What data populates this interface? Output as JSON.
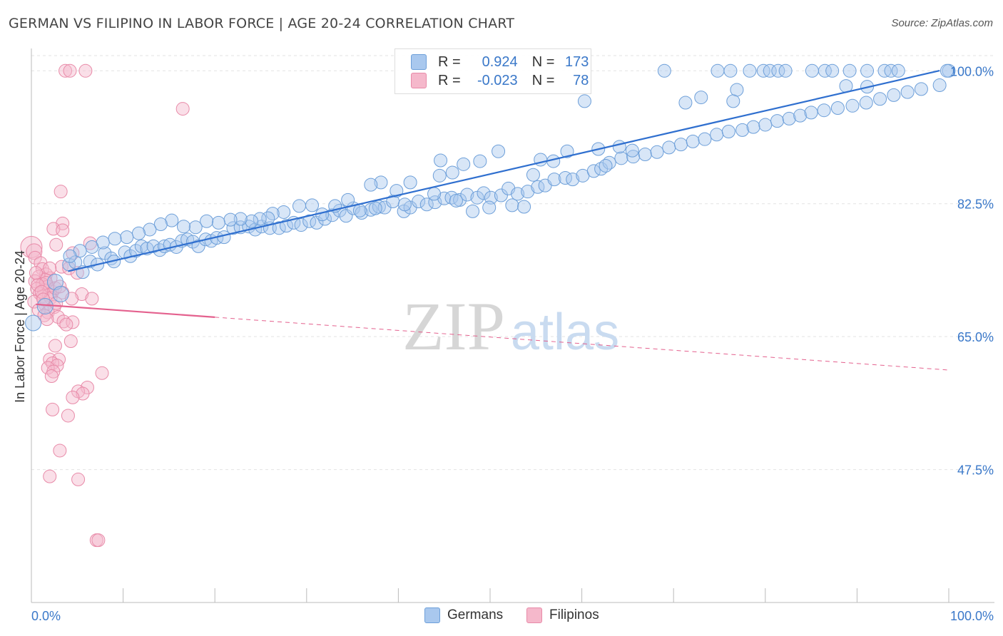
{
  "header": {
    "title": "GERMAN VS FILIPINO IN LABOR FORCE | AGE 20-24 CORRELATION CHART",
    "source": "Source: ZipAtlas.com"
  },
  "watermark": {
    "zip": "ZIP",
    "atlas": "atlas"
  },
  "stats_legend": {
    "rows": [
      {
        "r_label": "R =",
        "r_value": "0.924",
        "n_label": "N =",
        "n_value": "173",
        "color": "#a9c8ee"
      },
      {
        "r_label": "R =",
        "r_value": "-0.023",
        "n_label": "N =",
        "n_value": "78",
        "color": "#f5b8cb"
      }
    ]
  },
  "colors": {
    "german_fill": "#a9c8ee",
    "german_stroke": "#6d9fd9",
    "german_line": "#2f6fcf",
    "filipino_fill": "#f5b8cb",
    "filipino_stroke": "#e88aa8",
    "filipino_line": "#e4618e",
    "axis_text": "#3a78c9",
    "grid": "#e3e3e3"
  },
  "chart_data": {
    "type": "scatter",
    "title": "GERMAN VS FILIPINO IN LABOR FORCE | AGE 20-24 CORRELATION CHART",
    "xlabel": "",
    "ylabel": "In Labor Force | Age 20-24",
    "xlim": [
      0,
      100
    ],
    "ylim": [
      30,
      102
    ],
    "x_tick_labels": [
      "0.0%",
      "100.0%"
    ],
    "y_ticks": [
      47.5,
      65.0,
      82.5,
      100.0
    ],
    "y_tick_labels": [
      "47.5%",
      "65.0%",
      "82.5%",
      "100.0%"
    ],
    "grid": "horizontal dashed",
    "legend": "bottom-center",
    "series": [
      {
        "name": "Germans",
        "r": 0.924,
        "n": 173,
        "trend": {
          "x": [
            0,
            100
          ],
          "y": [
            72.5,
            100.3
          ],
          "style": "solid"
        },
        "points": [
          [
            0.2,
            66.8
          ],
          [
            1.5,
            69
          ],
          [
            2.6,
            72.2
          ],
          [
            3.2,
            70.6
          ],
          [
            4.1,
            74.5
          ],
          [
            4.8,
            74.8
          ],
          [
            5.6,
            73.5
          ],
          [
            6.4,
            74.9
          ],
          [
            7.2,
            74.5
          ],
          [
            8.0,
            76.0
          ],
          [
            8.7,
            75.3
          ],
          [
            9.0,
            74.9
          ],
          [
            10.2,
            76.1
          ],
          [
            10.8,
            75.6
          ],
          [
            11.4,
            76.3
          ],
          [
            12.0,
            76.9
          ],
          [
            12.6,
            76.6
          ],
          [
            13.3,
            76.9
          ],
          [
            14.0,
            76.4
          ],
          [
            14.5,
            76.9
          ],
          [
            15.1,
            77.1
          ],
          [
            15.8,
            76.8
          ],
          [
            16.4,
            77.6
          ],
          [
            17.0,
            77.8
          ],
          [
            17.6,
            77.5
          ],
          [
            18.2,
            76.9
          ],
          [
            19.0,
            77.8
          ],
          [
            19.6,
            77.6
          ],
          [
            20.2,
            78.0
          ],
          [
            21.0,
            78.1
          ],
          [
            22.0,
            79.3
          ],
          [
            22.8,
            79.4
          ],
          [
            23.7,
            79.5
          ],
          [
            24.4,
            79.1
          ],
          [
            25.1,
            79.5
          ],
          [
            26.0,
            79.3
          ],
          [
            27.0,
            79.3
          ],
          [
            27.8,
            79.6
          ],
          [
            28.6,
            80.0
          ],
          [
            29.4,
            79.7
          ],
          [
            30.3,
            80.2
          ],
          [
            31.1,
            80.0
          ],
          [
            32.0,
            80.5
          ],
          [
            32.8,
            81.0
          ],
          [
            33.6,
            81.6
          ],
          [
            34.3,
            80.9
          ],
          [
            35.1,
            81.9
          ],
          [
            36.0,
            81.3
          ],
          [
            37.0,
            81.7
          ],
          [
            37.9,
            82.1
          ],
          [
            38.5,
            82.0
          ],
          [
            39.4,
            82.8
          ],
          [
            40.6,
            81.5
          ],
          [
            41.3,
            82.0
          ],
          [
            42.2,
            82.8
          ],
          [
            43.1,
            82.4
          ],
          [
            44.0,
            82.7
          ],
          [
            45.0,
            83.2
          ],
          [
            45.8,
            83.3
          ],
          [
            46.7,
            83.0
          ],
          [
            47.5,
            83.7
          ],
          [
            48.6,
            83.3
          ],
          [
            49.3,
            83.9
          ],
          [
            50.1,
            83.3
          ],
          [
            51.2,
            83.6
          ],
          [
            52.0,
            84.5
          ],
          [
            53.0,
            83.8
          ],
          [
            54.1,
            84.1
          ],
          [
            55.2,
            84.7
          ],
          [
            56.0,
            84.9
          ],
          [
            57.0,
            85.7
          ],
          [
            58.2,
            85.9
          ],
          [
            59.0,
            85.7
          ],
          [
            60.1,
            86.2
          ],
          [
            61.3,
            86.8
          ],
          [
            62.1,
            87.1
          ],
          [
            63.0,
            87.9
          ],
          [
            64.3,
            88.5
          ],
          [
            65.6,
            88.7
          ],
          [
            66.9,
            89.0
          ],
          [
            68.2,
            89.3
          ],
          [
            69.5,
            89.9
          ],
          [
            70.8,
            90.3
          ],
          [
            72.1,
            90.7
          ],
          [
            73.4,
            91.0
          ],
          [
            74.7,
            91.6
          ],
          [
            76.0,
            92.0
          ],
          [
            77.5,
            92.2
          ],
          [
            78.7,
            92.6
          ],
          [
            80.0,
            92.9
          ],
          [
            81.3,
            93.4
          ],
          [
            82.6,
            93.7
          ],
          [
            83.8,
            94.1
          ],
          [
            85.0,
            94.5
          ],
          [
            86.4,
            94.8
          ],
          [
            87.9,
            95.1
          ],
          [
            89.5,
            95.4
          ],
          [
            91.0,
            95.8
          ],
          [
            92.5,
            96.3
          ],
          [
            94.0,
            96.8
          ],
          [
            95.5,
            97.2
          ],
          [
            97.0,
            97.6
          ],
          [
            99.0,
            98.1
          ],
          [
            100,
            100
          ],
          [
            69.0,
            100
          ],
          [
            74.8,
            100
          ],
          [
            76.2,
            100
          ],
          [
            78.3,
            100
          ],
          [
            79.8,
            100
          ],
          [
            80.5,
            100
          ],
          [
            81.4,
            100
          ],
          [
            82.2,
            100
          ],
          [
            85.1,
            100
          ],
          [
            86.5,
            100
          ],
          [
            87.3,
            100
          ],
          [
            89.2,
            100
          ],
          [
            91.1,
            100
          ],
          [
            93.0,
            100
          ],
          [
            93.7,
            100
          ],
          [
            94.5,
            100
          ],
          [
            99.8,
            100
          ],
          [
            88.8,
            98.0
          ],
          [
            91.1,
            97.9
          ],
          [
            76.9,
            97.5
          ],
          [
            73.0,
            96.5
          ],
          [
            71.3,
            95.8
          ],
          [
            76.5,
            96.0
          ],
          [
            60.3,
            96.0
          ],
          [
            58.4,
            89.4
          ],
          [
            64.1,
            90.0
          ],
          [
            65.5,
            89.5
          ],
          [
            61.8,
            89.7
          ],
          [
            62.6,
            87.5
          ],
          [
            56.9,
            88.1
          ],
          [
            55.5,
            88.3
          ],
          [
            54.7,
            86.3
          ],
          [
            50.9,
            89.4
          ],
          [
            48.9,
            88.1
          ],
          [
            47.1,
            87.7
          ],
          [
            45.9,
            86.6
          ],
          [
            44.6,
            88.2
          ],
          [
            44.5,
            86.2
          ],
          [
            46.3,
            82.9
          ],
          [
            41.3,
            85.3
          ],
          [
            38.1,
            85.3
          ],
          [
            37.0,
            85.0
          ],
          [
            48.1,
            81.5
          ],
          [
            49.9,
            82.0
          ],
          [
            52.4,
            82.3
          ],
          [
            53.7,
            82.1
          ],
          [
            43.9,
            83.8
          ],
          [
            40.7,
            82.4
          ],
          [
            39.8,
            84.2
          ],
          [
            37.5,
            81.9
          ],
          [
            35.8,
            81.6
          ],
          [
            34.5,
            83.0
          ],
          [
            33.1,
            82.2
          ],
          [
            31.7,
            81.1
          ],
          [
            30.6,
            82.3
          ],
          [
            29.2,
            82.2
          ],
          [
            27.5,
            81.4
          ],
          [
            26.3,
            81.2
          ],
          [
            25.8,
            80.6
          ],
          [
            24.9,
            80.5
          ],
          [
            24.0,
            80.2
          ],
          [
            22.8,
            80.5
          ],
          [
            21.7,
            80.4
          ],
          [
            20.4,
            80.0
          ],
          [
            19.1,
            80.2
          ],
          [
            17.9,
            79.4
          ],
          [
            16.6,
            79.5
          ],
          [
            15.3,
            80.3
          ],
          [
            14.1,
            79.8
          ],
          [
            12.9,
            79.1
          ],
          [
            11.7,
            78.6
          ],
          [
            10.4,
            78.1
          ],
          [
            9.1,
            77.9
          ],
          [
            7.8,
            77.4
          ],
          [
            6.6,
            76.8
          ],
          [
            5.3,
            76.3
          ],
          [
            4.2,
            75.6
          ]
        ]
      },
      {
        "name": "Filipinos",
        "r": -0.023,
        "n": 78,
        "trend": {
          "x": [
            0,
            100
          ],
          "y": [
            69.3,
            60.6
          ],
          "style": "solid to 20, dashed after"
        },
        "points": [
          [
            3.7,
            100
          ],
          [
            4.2,
            100
          ],
          [
            5.9,
            100
          ],
          [
            16.5,
            95.0
          ],
          [
            3.2,
            84.1
          ],
          [
            3.4,
            79.9
          ],
          [
            2.4,
            79.2
          ],
          [
            3.4,
            79.0
          ],
          [
            6.4,
            77.3
          ],
          [
            2.7,
            77.1
          ],
          [
            0,
            76.8
          ],
          [
            0.3,
            76.2
          ],
          [
            0.4,
            75.4
          ],
          [
            1.0,
            74.7
          ],
          [
            4.5,
            76.0
          ],
          [
            1.2,
            73.9
          ],
          [
            3.3,
            74.2
          ],
          [
            4.1,
            74.0
          ],
          [
            5.0,
            73.4
          ],
          [
            1.6,
            73.2
          ],
          [
            0.8,
            72.9
          ],
          [
            2.1,
            72.7
          ],
          [
            1.5,
            72.5
          ],
          [
            0.4,
            72.3
          ],
          [
            1.2,
            71.9
          ],
          [
            1.8,
            71.6
          ],
          [
            0.6,
            71.3
          ],
          [
            1.4,
            71.1
          ],
          [
            2.3,
            70.9
          ],
          [
            0.9,
            70.7
          ],
          [
            1.9,
            70.5
          ],
          [
            3.4,
            70.8
          ],
          [
            5.5,
            70.6
          ],
          [
            1.2,
            70.3
          ],
          [
            2.1,
            70.1
          ],
          [
            4.4,
            70.0
          ],
          [
            6.6,
            70.0
          ],
          [
            0.3,
            69.6
          ],
          [
            1.5,
            69.2
          ],
          [
            2.5,
            68.9
          ],
          [
            0.8,
            68.5
          ],
          [
            1.8,
            68.2
          ],
          [
            1.4,
            67.8
          ],
          [
            2.9,
            67.6
          ],
          [
            1.7,
            67.3
          ],
          [
            3.5,
            67.0
          ],
          [
            4.5,
            66.9
          ],
          [
            3.8,
            66.6
          ],
          [
            4.3,
            64.4
          ],
          [
            2.6,
            63.8
          ],
          [
            2.0,
            62.0
          ],
          [
            3.0,
            62.0
          ],
          [
            2.3,
            61.5
          ],
          [
            2.8,
            61.2
          ],
          [
            1.8,
            60.9
          ],
          [
            2.4,
            60.4
          ],
          [
            7.7,
            60.2
          ],
          [
            2.2,
            59.8
          ],
          [
            6.1,
            58.3
          ],
          [
            5.1,
            57.8
          ],
          [
            5.6,
            57.5
          ],
          [
            4.5,
            57.0
          ],
          [
            2.3,
            55.4
          ],
          [
            4.0,
            54.6
          ],
          [
            3.1,
            50.0
          ],
          [
            2.0,
            46.6
          ],
          [
            5.1,
            46.2
          ],
          [
            7.1,
            38.2
          ],
          [
            7.3,
            38.2
          ],
          [
            1.6,
            72.1
          ],
          [
            0.7,
            71.8
          ],
          [
            2.6,
            71.4
          ],
          [
            1.1,
            70.9
          ],
          [
            3.1,
            71.6
          ],
          [
            0.5,
            73.4
          ],
          [
            2.0,
            74.0
          ],
          [
            1.3,
            69.9
          ],
          [
            2.7,
            69.4
          ]
        ]
      }
    ]
  },
  "bottom_legend": {
    "items": [
      {
        "label": "Germans",
        "color": "#a9c8ee"
      },
      {
        "label": "Filipinos",
        "color": "#f5b8cb"
      }
    ]
  }
}
